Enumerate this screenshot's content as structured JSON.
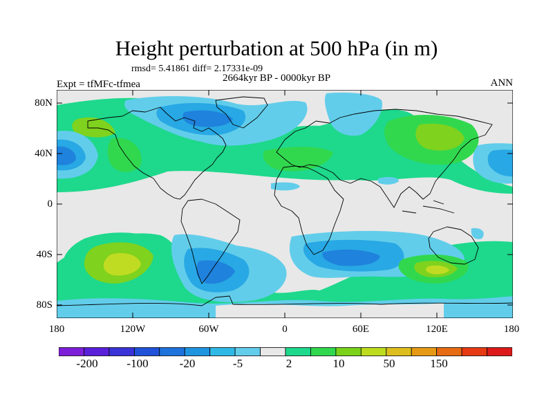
{
  "header": {
    "title": "Height perturbation at 500 hPa (in m)",
    "stats": "rmsd= 5.41861  diff= 2.17331e-09",
    "period": "2664kyr BP - 0000kyr BP",
    "experiment": "Expt = tfMFc-tfmea",
    "season": "ANN"
  },
  "axes": {
    "lat_labels": [
      "80N",
      "40N",
      "0",
      "40S",
      "80S"
    ],
    "lon_labels": [
      "180",
      "120W",
      "60W",
      "0",
      "60E",
      "120E",
      "180"
    ]
  },
  "colorbar": {
    "labels": [
      "-200",
      "-100",
      "-20",
      "-5",
      "2",
      "10",
      "50",
      "150"
    ],
    "colors": [
      "#7d1fd8",
      "#5a1fd8",
      "#3a34d8",
      "#1f52d8",
      "#1e72dc",
      "#1f95e0",
      "#30b8e6",
      "#62cdea",
      "#e8e8e8",
      "#1ed88c",
      "#31d84e",
      "#7ad21a",
      "#bedc1e",
      "#dcbe1e",
      "#e69914",
      "#e66b12",
      "#e63a12",
      "#dc1a1a"
    ]
  },
  "field_colors": {
    "neg4": "#1f5fd8",
    "neg3": "#1f82dc",
    "neg2": "#28a8e4",
    "neg1": "#62cdea",
    "zero": "#e8e8e8",
    "pos1": "#1ed88c",
    "pos2": "#31d84e",
    "pos3": "#7fd21d",
    "pos4": "#c0dc22"
  }
}
